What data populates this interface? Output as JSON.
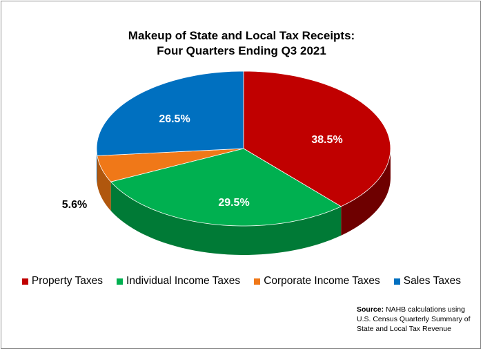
{
  "chart_data": {
    "type": "pie",
    "title_lines": [
      "Makeup of State and Local Tax Receipts:",
      "Four Quarters Ending Q3 2021"
    ],
    "slices": [
      {
        "label": "Property Taxes",
        "value": 38.5,
        "display": "38.5%",
        "color": "#c00000",
        "side_color": "#6e0000"
      },
      {
        "label": "Individual Income Taxes",
        "value": 29.5,
        "display": "29.5%",
        "color": "#00b050",
        "side_color": "#007a36"
      },
      {
        "label": "Corporate Income Taxes",
        "value": 5.6,
        "display": "5.6%",
        "color": "#f07818",
        "side_color": "#b0570e"
      },
      {
        "label": "Sales Taxes",
        "value": 26.5,
        "display": "26.5%",
        "color": "#0070c0",
        "side_color": "#004a80"
      }
    ],
    "style": "3d",
    "legend_position": "bottom"
  },
  "source": {
    "bold": "Source:",
    "text": " NAHB calculations using U.S. Census Quarterly Summary of State and Local Tax Revenue"
  }
}
